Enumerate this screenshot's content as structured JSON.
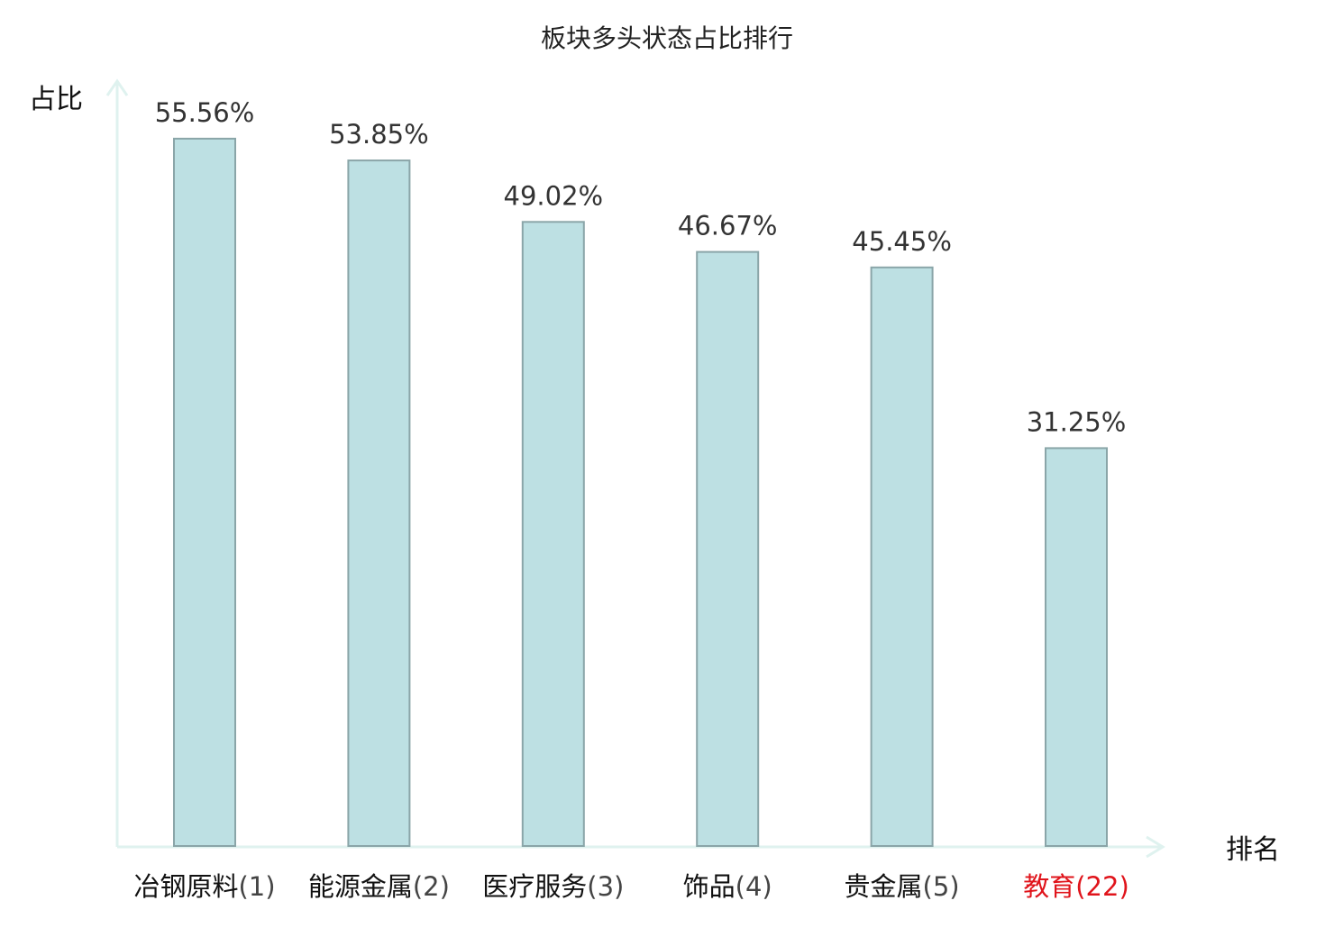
{
  "chart_data": {
    "type": "bar",
    "title": "板块多头状态占比排行",
    "ylabel": "占比",
    "xlabel": "排名",
    "categories": [
      "冶钢原料",
      "能源金属",
      "医疗服务",
      "饰品",
      "贵金属",
      "教育"
    ],
    "ranks": [
      "(1)",
      "(2)",
      "(3)",
      "(4)",
      "(5)",
      "(22)"
    ],
    "values": [
      55.56,
      53.85,
      49.02,
      46.67,
      45.45,
      31.25
    ],
    "value_labels": [
      "55.56%",
      "53.85%",
      "49.02%",
      "46.67%",
      "45.45%",
      "31.25%"
    ],
    "ylim": [
      0,
      60
    ],
    "grid": false,
    "legend": "none",
    "highlight_index": 5
  },
  "colors": {
    "bar_fill": "#bde0e3",
    "bar_stroke": "#8aa5a8",
    "axis": "#dff2ef",
    "text": "#111111",
    "value_text": "#333333",
    "rank_text": "#444444",
    "highlight": "#e0141b"
  }
}
